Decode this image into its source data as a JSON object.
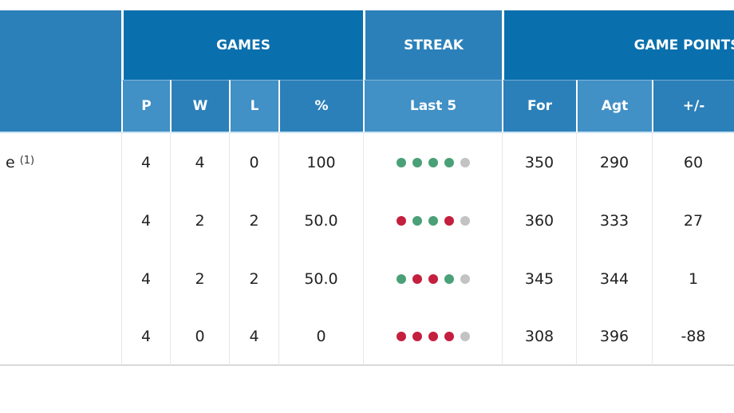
{
  "colors": {
    "header_dark": "#0a6fad",
    "header_medium": "#2b80b9",
    "header_light": "#4190c6",
    "win_dot": "#4aa077",
    "loss_dot": "#c41f3e",
    "empty_dot": "#c3c3c3"
  },
  "standings_table": {
    "group_headers": [
      {
        "id": "games",
        "label": "GAMES"
      },
      {
        "id": "streak",
        "label": "STREAK"
      },
      {
        "id": "game_points",
        "label": "GAME POINTS"
      }
    ],
    "column_headers": {
      "p": "P",
      "w": "W",
      "l": "L",
      "pct": "%",
      "last5": "Last 5",
      "for": "For",
      "agt": "Agt",
      "plusminus": "+/-"
    },
    "rows": [
      {
        "team_fragment": "e",
        "team_seed": "(1)",
        "p": "4",
        "w": "4",
        "l": "0",
        "pct": "100",
        "last5": [
          "win",
          "win",
          "win",
          "win",
          "none"
        ],
        "for": "350",
        "agt": "290",
        "plusminus": "60"
      },
      {
        "team_fragment": "",
        "team_seed": "",
        "p": "4",
        "w": "2",
        "l": "2",
        "pct": "50.0",
        "last5": [
          "loss",
          "win",
          "win",
          "loss",
          "none"
        ],
        "for": "360",
        "agt": "333",
        "plusminus": "27"
      },
      {
        "team_fragment": "",
        "team_seed": "",
        "p": "4",
        "w": "2",
        "l": "2",
        "pct": "50.0",
        "last5": [
          "win",
          "loss",
          "loss",
          "win",
          "none"
        ],
        "for": "345",
        "agt": "344",
        "plusminus": "1"
      },
      {
        "team_fragment": "",
        "team_seed": "",
        "p": "4",
        "w": "0",
        "l": "4",
        "pct": "0",
        "last5": [
          "loss",
          "loss",
          "loss",
          "loss",
          "none"
        ],
        "for": "308",
        "agt": "396",
        "plusminus": "-88"
      }
    ]
  }
}
